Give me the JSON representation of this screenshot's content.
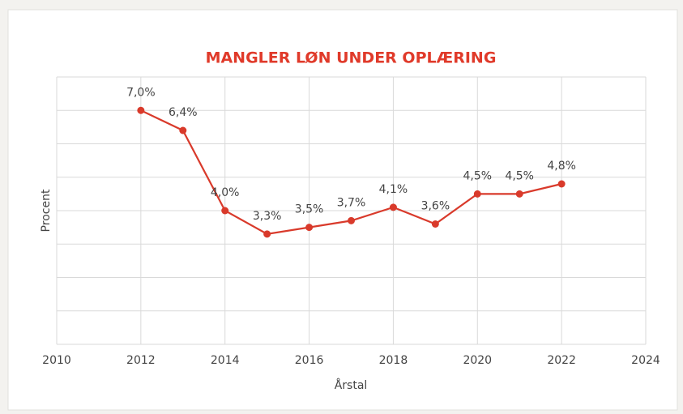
{
  "chart_data": {
    "type": "line",
    "title": "MANGLER LØN UNDER OPLÆRING",
    "xlabel": "Årstal",
    "ylabel": "Procent",
    "x": [
      2012,
      2013,
      2014,
      2015,
      2016,
      2017,
      2018,
      2019,
      2020,
      2021,
      2022
    ],
    "series": [
      {
        "name": "Procent",
        "color": "#d93a2b",
        "values": [
          7.0,
          6.4,
          4.0,
          3.3,
          3.5,
          3.7,
          4.1,
          3.6,
          4.5,
          4.5,
          4.8
        ],
        "value_labels": [
          "7,0%",
          "6,4%",
          "4,0%",
          "3,3%",
          "3,5%",
          "3,7%",
          "4,1%",
          "3,6%",
          "4,5%",
          "4,5%",
          "4,8%"
        ]
      }
    ],
    "xlim": [
      2010,
      2024
    ],
    "xticks": [
      2010,
      2012,
      2014,
      2016,
      2018,
      2020,
      2022,
      2024
    ],
    "ylim": [
      0,
      8
    ],
    "yticks": [
      0,
      1,
      2,
      3,
      4,
      5,
      6,
      7,
      8
    ],
    "ytick_labels": false,
    "grid": true,
    "legend": false
  }
}
